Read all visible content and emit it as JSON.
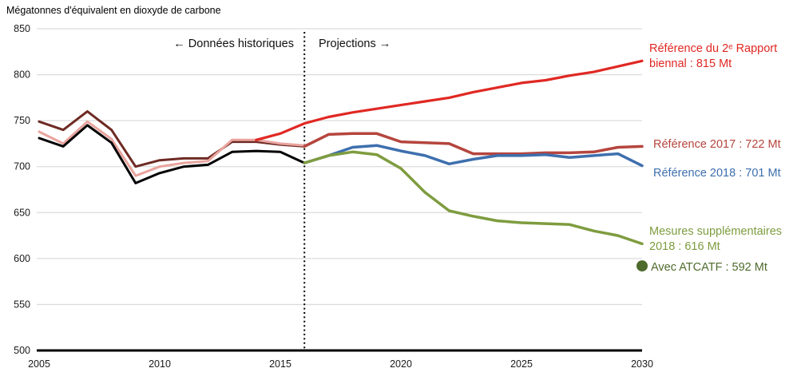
{
  "title": "Mégatonnes d'équivalent en dioxyde de carbone",
  "annotations": {
    "historical": "← Données historiques",
    "projections": "Projections →"
  },
  "legend": [
    {
      "text": "Référence du 2ᵉ Rapport biennal : 815 Mt",
      "color": "#e02823"
    },
    {
      "text": "Référence 2017 : 722 Mt",
      "color": "#b5453e"
    },
    {
      "text": "Référence 2018 : 701 Mt",
      "color": "#3e6fae"
    },
    {
      "text": "Mesures supplémentaires 2018 : 616 Mt",
      "color": "#7e9c3f"
    },
    {
      "text": "Avec ATCATF : 592 Mt",
      "color": "#4e6a2d"
    }
  ],
  "chart_data": {
    "type": "line",
    "title": "Mégatonnes d'équivalent en dioxyde de carbone",
    "xlabel": "",
    "ylabel": "Mégatonnes d'équivalent en dioxyde de carbone",
    "xlim": [
      2005,
      2030
    ],
    "ylim": [
      500,
      850
    ],
    "x_ticks": [
      2005,
      2010,
      2015,
      2020,
      2025,
      2030
    ],
    "y_ticks": [
      500,
      550,
      600,
      650,
      700,
      750,
      800,
      850
    ],
    "grid": "horizontal",
    "legend_position": "right",
    "divider_year": 2016,
    "divider_labels": {
      "left": "Données historiques",
      "right": "Projections"
    },
    "series": [
      {
        "name": "reference-2017-historique",
        "color": "#6e2a23",
        "width": 3,
        "start_year": 2005,
        "values": [
          749,
          740,
          760,
          740,
          700,
          707,
          709,
          709,
          727,
          727,
          724,
          722
        ]
      },
      {
        "name": "historique-rose",
        "color": "#e9a49e",
        "width": 3,
        "start_year": 2005,
        "values": [
          738,
          725,
          749,
          730,
          690,
          700,
          704,
          706,
          729,
          729,
          725,
          723
        ]
      },
      {
        "name": "donnees-historiques",
        "color": "#000000",
        "width": 3,
        "start_year": 2005,
        "values": [
          731,
          722,
          745,
          726,
          682,
          693,
          700,
          702,
          716,
          717,
          716,
          704
        ]
      },
      {
        "name": "reference-2e-rapport-biennal",
        "color": "#e02823",
        "width": 3.2,
        "start_year": 2014,
        "values": [
          729,
          736,
          747,
          754,
          759,
          763,
          767,
          771,
          775,
          781,
          786,
          791,
          794,
          799,
          803,
          809,
          815
        ]
      },
      {
        "name": "reference-2017",
        "color": "#b5453e",
        "width": 3.5,
        "start_year": 2016,
        "values": [
          722,
          735,
          736,
          736,
          727,
          726,
          725,
          714,
          714,
          714,
          715,
          715,
          716,
          721,
          722
        ]
      },
      {
        "name": "reference-2018",
        "color": "#3e6fae",
        "width": 3.5,
        "start_year": 2016,
        "values": [
          704,
          712,
          721,
          723,
          717,
          712,
          703,
          708,
          712,
          712,
          713,
          710,
          712,
          714,
          701
        ]
      },
      {
        "name": "mesures-supplementaires-2018",
        "color": "#7e9c3f",
        "width": 3.5,
        "start_year": 2016,
        "values": [
          704,
          712,
          716,
          713,
          698,
          672,
          652,
          646,
          641,
          639,
          638,
          637,
          630,
          625,
          616
        ]
      }
    ],
    "point_marker": {
      "name": "Avec ATCATF",
      "year": 2030,
      "value": 592,
      "color": "#4e6a2d",
      "radius": 7
    }
  }
}
